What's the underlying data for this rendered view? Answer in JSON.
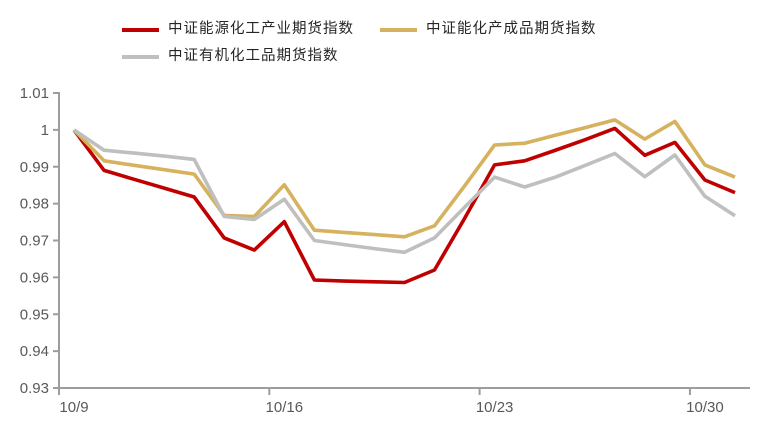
{
  "chart_data": {
    "type": "line",
    "title": "",
    "xlabel": "",
    "ylabel": "",
    "x": [
      "10/9",
      "10/10",
      "10/11",
      "10/12",
      "10/13",
      "10/14",
      "10/15",
      "10/16",
      "10/17",
      "10/18",
      "10/19",
      "10/20",
      "10/21",
      "10/22",
      "10/23",
      "10/24",
      "10/25",
      "10/26",
      "10/27",
      "10/28",
      "10/29",
      "10/30",
      "10/31"
    ],
    "x_tick_label_indices": [
      0,
      7,
      14,
      21
    ],
    "x_tick_labels": [
      "10/9",
      "10/16",
      "10/23",
      "10/30"
    ],
    "ylim": [
      0.93,
      1.01
    ],
    "y_ticks": [
      0.93,
      0.94,
      0.95,
      0.96,
      0.97,
      0.98,
      0.99,
      1.0,
      1.01
    ],
    "y_tick_labels": [
      "0.93",
      "0.94",
      "0.95",
      "0.96",
      "0.97",
      "0.98",
      "0.99",
      "1",
      "1.01"
    ],
    "grid": false,
    "legend_position": "top",
    "series": [
      {
        "name": "中证能源化工产业期货指数",
        "color": "#c00000",
        "values": [
          1.0,
          0.989,
          0.9866,
          0.9842,
          0.9818,
          0.9707,
          0.9674,
          0.9751,
          0.9593,
          0.959,
          0.9588,
          0.9586,
          0.962,
          0.976,
          0.9905,
          0.9916,
          0.9944,
          0.9973,
          1.0004,
          0.9931,
          0.9966,
          0.9864,
          0.983
        ]
      },
      {
        "name": "中证能化产成品期货指数",
        "color": "#d6b25e",
        "values": [
          1.0,
          0.9916,
          0.9904,
          0.9892,
          0.988,
          0.9768,
          0.9765,
          0.9851,
          0.9728,
          0.9722,
          0.9716,
          0.971,
          0.974,
          0.9848,
          0.9959,
          0.9964,
          0.9985,
          1.0006,
          1.0027,
          0.9975,
          1.0023,
          0.9905,
          0.9872
        ]
      },
      {
        "name": "中证有机化工品期货指数",
        "color": "#bfbfbf",
        "values": [
          1.0,
          0.9945,
          0.9937,
          0.9929,
          0.992,
          0.9765,
          0.9757,
          0.9812,
          0.97,
          0.9689,
          0.9678,
          0.9668,
          0.9707,
          0.979,
          0.9872,
          0.9845,
          0.9871,
          0.9903,
          0.9936,
          0.9873,
          0.9932,
          0.982,
          0.9767
        ]
      }
    ]
  },
  "colors": {
    "background": "#ffffff",
    "axis": "#9d9d9d",
    "tick_label": "#595959",
    "legend_text": "#262626",
    "series_red": "#c00000",
    "series_gold": "#d6b25e",
    "series_gray": "#bfbfbf"
  }
}
